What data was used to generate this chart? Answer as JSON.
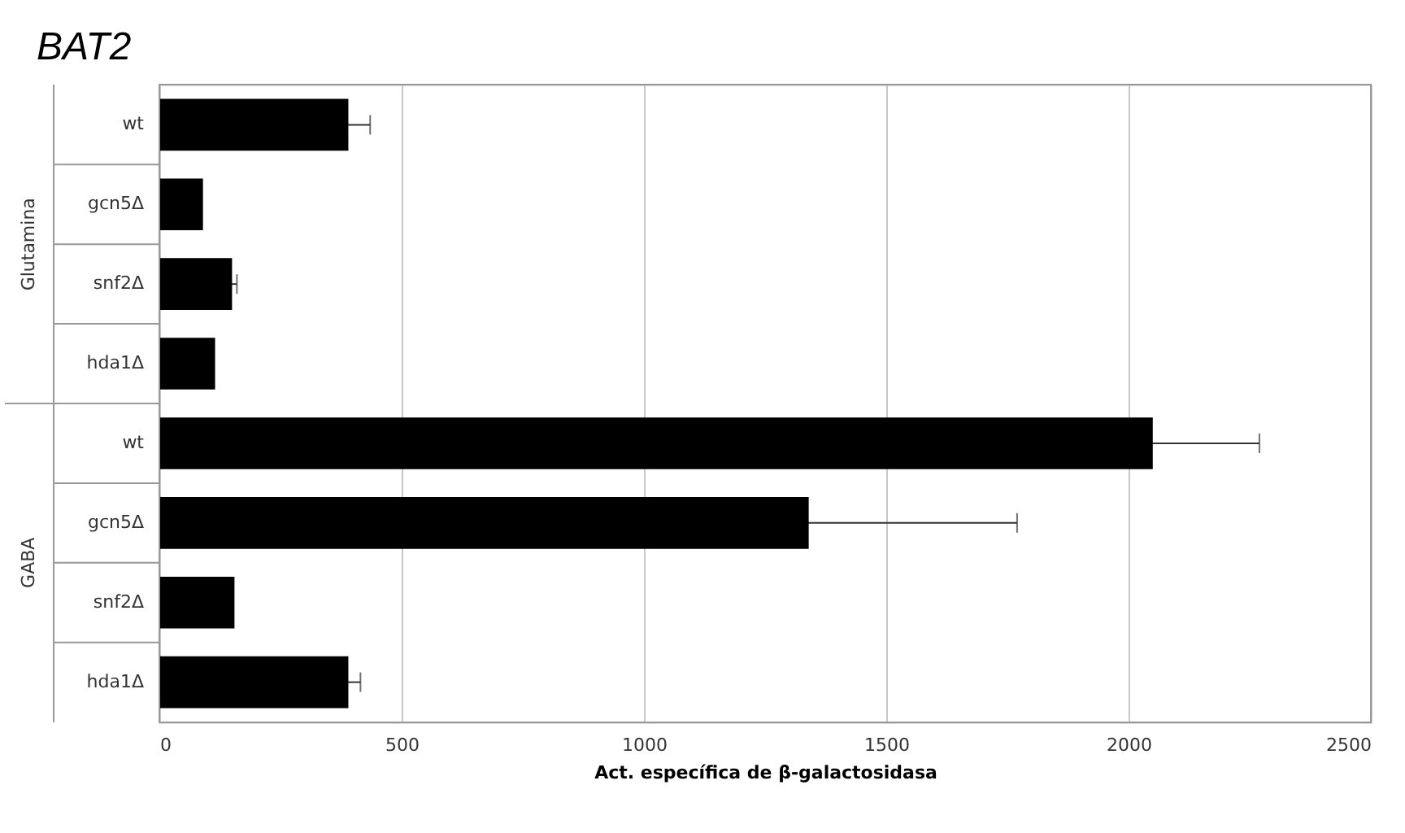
{
  "chart_data": {
    "type": "bar",
    "orientation": "horizontal",
    "title": "BAT2",
    "xlabel": "Act. específica de β-galactosidasa",
    "categories": [
      "wt",
      "gcn5Δ",
      "snf2Δ",
      "hda1Δ",
      "wt",
      "gcn5Δ",
      "snf2Δ",
      "hda1Δ"
    ],
    "values": [
      390,
      90,
      150,
      115,
      2050,
      1340,
      155,
      390
    ],
    "errors": [
      45,
      null,
      10,
      null,
      220,
      430,
      null,
      25
    ],
    "color": "#000000",
    "xlim": [
      0,
      2500
    ],
    "xticks": [
      0,
      500,
      1000,
      1500,
      2000,
      2500
    ],
    "grid": "x",
    "annotations": [
      "Glutamina",
      "GABA"
    ]
  }
}
